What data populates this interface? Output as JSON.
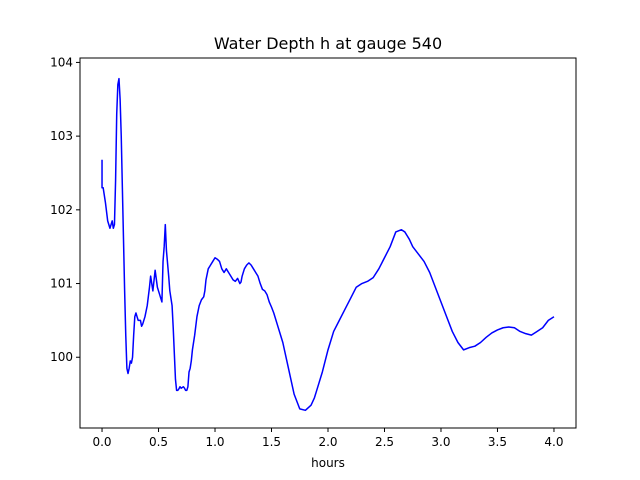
{
  "chart_data": {
    "type": "line",
    "title": "Water Depth h at gauge 540",
    "xlabel": "hours",
    "ylabel": "",
    "xlim": [
      -0.195,
      4.195
    ],
    "ylim": [
      99.04,
      104.06
    ],
    "xticks": [
      0.0,
      0.5,
      1.0,
      1.5,
      2.0,
      2.5,
      3.0,
      3.5,
      4.0
    ],
    "xtick_labels": [
      "0.0",
      "0.5",
      "1.0",
      "1.5",
      "2.0",
      "2.5",
      "3.0",
      "3.5",
      "4.0"
    ],
    "yticks": [
      100,
      101,
      102,
      103,
      104
    ],
    "ytick_labels": [
      "100",
      "101",
      "102",
      "103",
      "104"
    ],
    "grid": false,
    "legend": "none",
    "series": [
      {
        "color": "#0000ff",
        "x": [
          0.0,
          0.0,
          0.01,
          0.02,
          0.03,
          0.05,
          0.07,
          0.09,
          0.1,
          0.11,
          0.12,
          0.13,
          0.14,
          0.15,
          0.16,
          0.17,
          0.18,
          0.19,
          0.2,
          0.21,
          0.22,
          0.23,
          0.24,
          0.25,
          0.26,
          0.27,
          0.28,
          0.29,
          0.3,
          0.31,
          0.32,
          0.33,
          0.34,
          0.35,
          0.36,
          0.38,
          0.4,
          0.42,
          0.43,
          0.45,
          0.47,
          0.49,
          0.5,
          0.51,
          0.52,
          0.53,
          0.54,
          0.55,
          0.56,
          0.57,
          0.59,
          0.6,
          0.62,
          0.63,
          0.64,
          0.65,
          0.66,
          0.67,
          0.68,
          0.69,
          0.7,
          0.72,
          0.73,
          0.74,
          0.75,
          0.76,
          0.77,
          0.78,
          0.79,
          0.8,
          0.82,
          0.84,
          0.86,
          0.88,
          0.9,
          0.91,
          0.92,
          0.94,
          0.96,
          0.98,
          1.0,
          1.02,
          1.04,
          1.06,
          1.08,
          1.1,
          1.12,
          1.14,
          1.16,
          1.18,
          1.2,
          1.22,
          1.23,
          1.24,
          1.26,
          1.28,
          1.3,
          1.32,
          1.34,
          1.36,
          1.38,
          1.4,
          1.42,
          1.44,
          1.46,
          1.48,
          1.5,
          1.52,
          1.55,
          1.58,
          1.6,
          1.65,
          1.7,
          1.75,
          1.8,
          1.85,
          1.88,
          1.9,
          1.92,
          1.95,
          2.0,
          2.05,
          2.1,
          2.15,
          2.2,
          2.25,
          2.3,
          2.35,
          2.4,
          2.45,
          2.5,
          2.55,
          2.6,
          2.65,
          2.68,
          2.7,
          2.72,
          2.75,
          2.8,
          2.85,
          2.9,
          2.95,
          3.0,
          3.05,
          3.1,
          3.15,
          3.2,
          3.25,
          3.3,
          3.35,
          3.4,
          3.45,
          3.5,
          3.55,
          3.6,
          3.65,
          3.7,
          3.75,
          3.8,
          3.85,
          3.9,
          3.95,
          4.0
        ],
        "y": [
          102.68,
          102.3,
          102.3,
          102.2,
          102.1,
          101.85,
          101.75,
          101.85,
          101.75,
          101.8,
          102.4,
          103.3,
          103.7,
          103.78,
          103.5,
          103.0,
          102.3,
          101.6,
          100.9,
          100.3,
          99.85,
          99.78,
          99.85,
          99.95,
          99.92,
          100.0,
          100.3,
          100.55,
          100.6,
          100.55,
          100.5,
          100.5,
          100.5,
          100.42,
          100.45,
          100.55,
          100.7,
          100.95,
          101.1,
          100.9,
          101.18,
          100.95,
          100.9,
          100.85,
          100.8,
          100.75,
          101.3,
          101.5,
          101.8,
          101.45,
          101.1,
          100.9,
          100.7,
          100.4,
          100.05,
          99.7,
          99.55,
          99.55,
          99.57,
          99.6,
          99.58,
          99.6,
          99.58,
          99.55,
          99.55,
          99.6,
          99.8,
          99.85,
          99.95,
          100.1,
          100.3,
          100.55,
          100.7,
          100.78,
          100.82,
          100.9,
          101.05,
          101.2,
          101.25,
          101.3,
          101.35,
          101.33,
          101.3,
          101.2,
          101.15,
          101.2,
          101.15,
          101.1,
          101.05,
          101.03,
          101.07,
          101.0,
          101.02,
          101.1,
          101.2,
          101.25,
          101.28,
          101.25,
          101.2,
          101.15,
          101.1,
          101.0,
          100.92,
          100.9,
          100.85,
          100.75,
          100.68,
          100.6,
          100.45,
          100.3,
          100.2,
          99.85,
          99.5,
          99.3,
          99.28,
          99.35,
          99.45,
          99.55,
          99.65,
          99.8,
          100.1,
          100.35,
          100.5,
          100.65,
          100.8,
          100.95,
          101.0,
          101.03,
          101.08,
          101.2,
          101.35,
          101.5,
          101.7,
          101.73,
          101.7,
          101.65,
          101.6,
          101.5,
          101.4,
          101.3,
          101.15,
          100.95,
          100.75,
          100.55,
          100.35,
          100.2,
          100.1,
          100.13,
          100.15,
          100.2,
          100.27,
          100.33,
          100.37,
          100.4,
          100.41,
          100.4,
          100.35,
          100.32,
          100.3,
          100.35,
          100.4,
          100.5,
          100.55
        ]
      }
    ]
  }
}
